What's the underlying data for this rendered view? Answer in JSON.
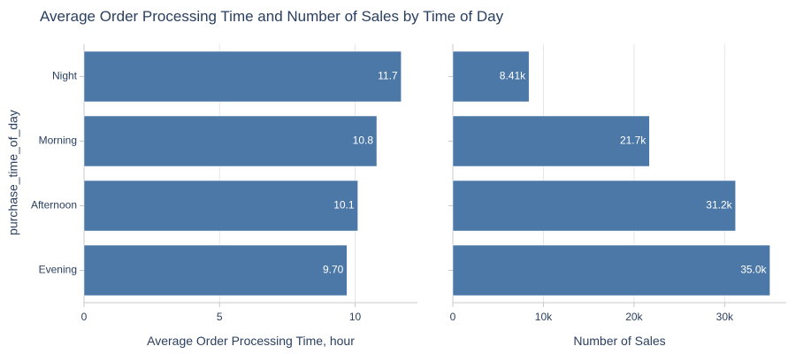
{
  "chart_title": "Average Order Processing Time and Number of Sales by Time of Day",
  "shared_y_label": "purchase_time_of_day",
  "chart_data": [
    {
      "type": "bar",
      "orientation": "horizontal",
      "title": "Average Order Processing Time and Number of Sales by Time of Day",
      "categories": [
        "Night",
        "Morning",
        "Afternoon",
        "Evening"
      ],
      "values": [
        11.7,
        10.8,
        10.1,
        9.7
      ],
      "value_labels": [
        "11.7",
        "10.8",
        "10.1",
        "9.70"
      ],
      "xlabel": "Average Order Processing Time, hour",
      "ylabel": "purchase_time_of_day",
      "xlim": [
        0,
        12.3
      ],
      "xticks": [
        0,
        5,
        10
      ],
      "xtick_labels": [
        "0",
        "5",
        "10"
      ],
      "grid": true,
      "bar_color": "#4c78a8"
    },
    {
      "type": "bar",
      "orientation": "horizontal",
      "categories": [
        "Night",
        "Morning",
        "Afternoon",
        "Evening"
      ],
      "values": [
        8410,
        21700,
        31200,
        35000
      ],
      "value_labels": [
        "8.41k",
        "21.7k",
        "31.2k",
        "35.0k"
      ],
      "xlabel": "Number of Sales",
      "ylabel": "",
      "xlim": [
        0,
        36800
      ],
      "xticks": [
        0,
        10000,
        20000,
        30000
      ],
      "xtick_labels": [
        "0",
        "10k",
        "20k",
        "30k"
      ],
      "grid": true,
      "bar_color": "#4c78a8"
    }
  ]
}
